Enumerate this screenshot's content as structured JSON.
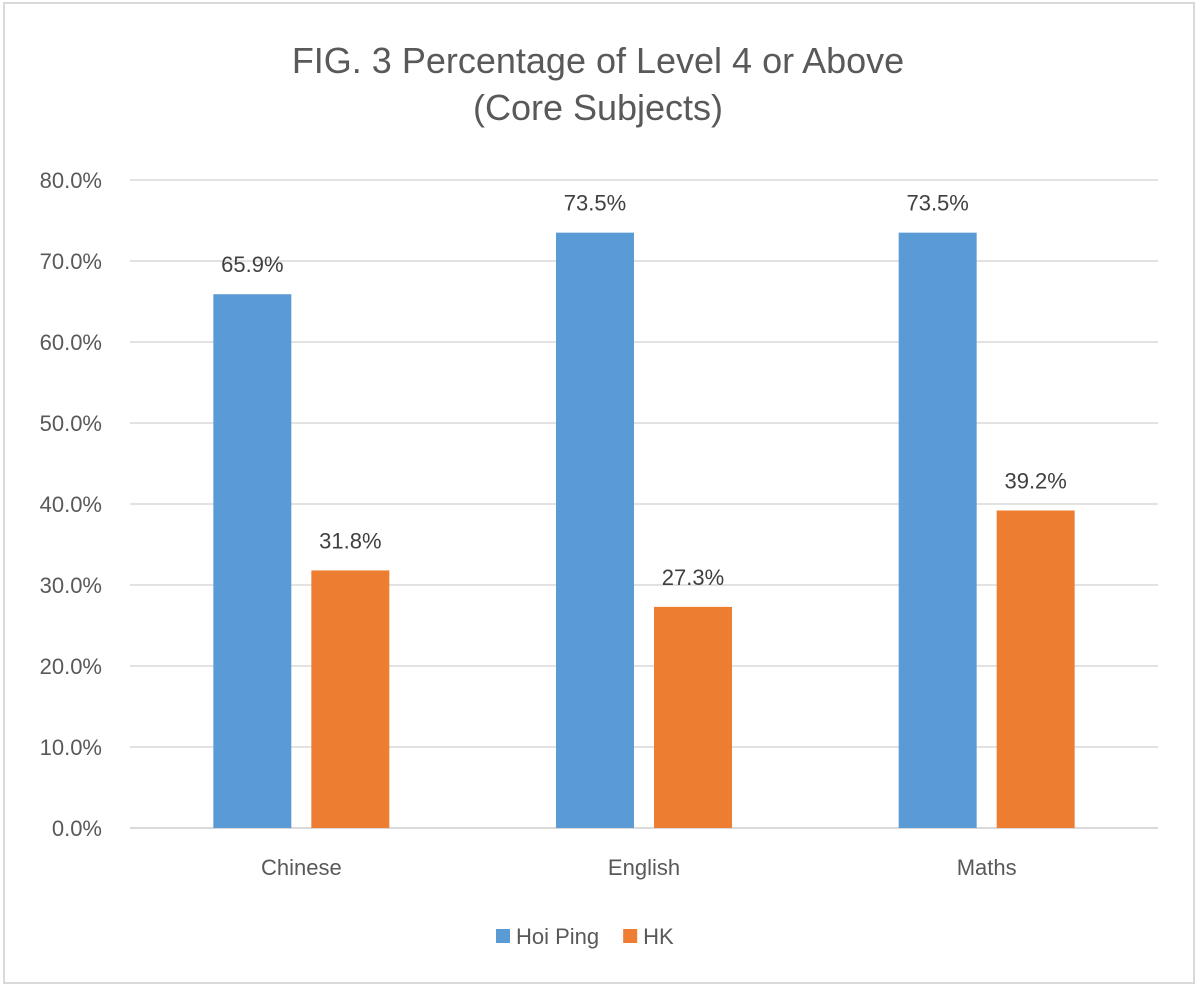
{
  "chart_data": {
    "type": "bar",
    "title": [
      "FIG. 3 Percentage of Level 4 or Above",
      "(Core Subjects)"
    ],
    "xlabel": "",
    "ylabel": "",
    "categories": [
      "Chinese",
      "English",
      "Maths"
    ],
    "series": [
      {
        "name": "Hoi Ping",
        "color": "#5B9BD5",
        "values": [
          65.9,
          73.5,
          73.5
        ],
        "labels": [
          "65.9%",
          "73.5%",
          "73.5%"
        ]
      },
      {
        "name": "HK",
        "color": "#ED7D31",
        "values": [
          31.8,
          27.3,
          39.2
        ],
        "labels": [
          "31.8%",
          "27.3%",
          "39.2%"
        ]
      }
    ],
    "ylim": [
      0,
      80
    ],
    "yticks": [
      "0.0%",
      "10.0%",
      "20.0%",
      "30.0%",
      "40.0%",
      "50.0%",
      "60.0%",
      "70.0%",
      "80.0%"
    ],
    "grid": true,
    "legend_position": "bottom"
  }
}
